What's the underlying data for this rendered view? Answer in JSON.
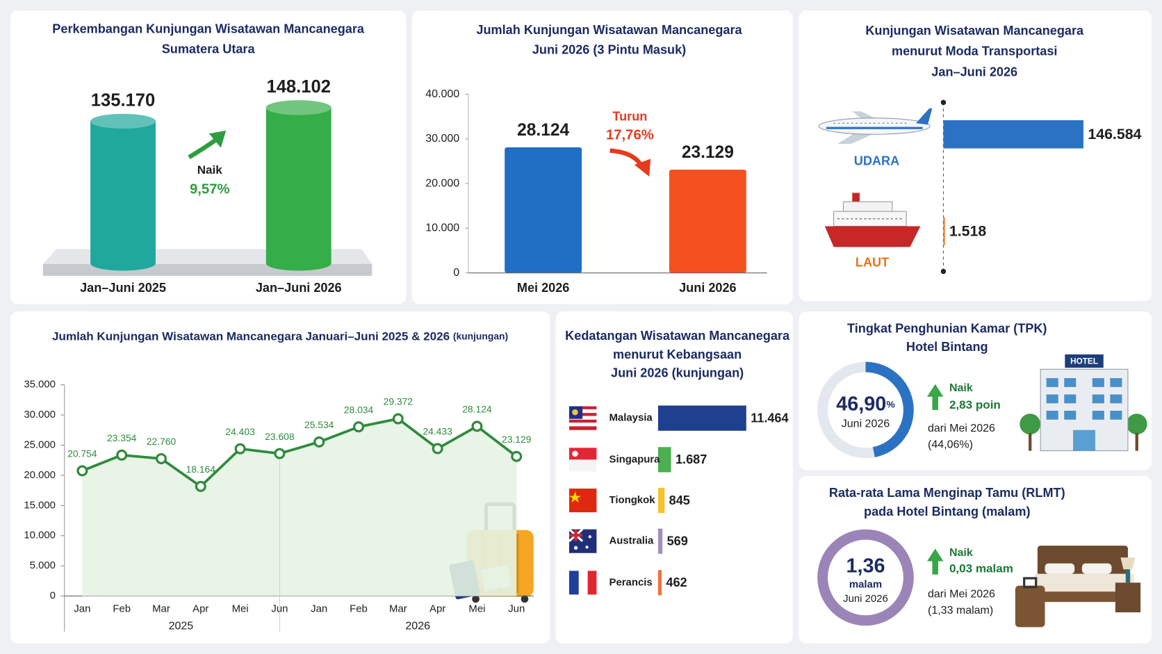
{
  "chart_data": [
    {
      "type": "cylinder",
      "title": [
        "Perkembangan Kunjungan Wisatawan Mancanegara",
        "Sumatera Utara"
      ],
      "categories": [
        "Jan–Juni 2025",
        "Jan–Juni 2026"
      ],
      "values": [
        135170,
        148102
      ],
      "value_labels": [
        "135.170",
        "148.102"
      ],
      "colors": [
        "#1fa89b",
        "#35ad48"
      ],
      "annotation": {
        "label": "Naik",
        "change": "9,57%"
      }
    },
    {
      "type": "bar",
      "title": [
        "Jumlah Kunjungan Wisatawan Mancanegara",
        "Juni 2026 (3 Pintu Masuk)"
      ],
      "categories": [
        "Mei 2026",
        "Juni 2026"
      ],
      "values": [
        28124,
        23129
      ],
      "value_labels": [
        "28.124",
        "23.129"
      ],
      "colors": [
        "#1f6fc4",
        "#f4511e"
      ],
      "ylim": [
        0,
        40000
      ],
      "yticks": [
        0,
        {
          "value": 10000,
          "label": "10.000"
        },
        {
          "value": 20000,
          "label": "20.000"
        },
        {
          "value": 30000,
          "label": "30.000"
        },
        {
          "value": 40000,
          "label": "40.000"
        }
      ],
      "annotation": {
        "label": "Turun",
        "change": "17,76%"
      }
    },
    {
      "type": "hbar",
      "title": [
        "Kunjungan Wisatawan Mancanegara",
        "menurut Moda Transportasi",
        "Jan–Juni 2026"
      ],
      "categories": [
        "UDARA",
        "LAUT"
      ],
      "values": [
        146584,
        1518
      ],
      "value_labels": [
        "146.584",
        "1.518"
      ],
      "colors": [
        "#2b73c2",
        "#e8731f"
      ]
    },
    {
      "type": "line",
      "title": "Jumlah Kunjungan Wisatawan Mancanegara Januari–Juni 2025 & 2026",
      "unit": "(kunjungan)",
      "categories": [
        "Jan",
        "Feb",
        "Mar",
        "Apr",
        "Mei",
        "Jun",
        "Jan",
        "Feb",
        "Mar",
        "Apr",
        "Mei",
        "Jun"
      ],
      "groups": [
        "2025",
        "2026"
      ],
      "values": [
        20754,
        23354,
        22760,
        18164,
        24403,
        23608,
        25534,
        28034,
        29372,
        24433,
        28124,
        23129
      ],
      "value_labels": [
        "20.754",
        "23.354",
        "22.760",
        "18.164",
        "24.403",
        "23.608",
        "25.534",
        "28.034",
        "29.372",
        "24.433",
        "28.124",
        "23.129"
      ],
      "color": "#2e8b3c",
      "ylim": [
        0,
        35000
      ],
      "yticks": [
        0,
        {
          "value": 5000,
          "label": "5.000"
        },
        {
          "value": 10000,
          "label": "10.000"
        },
        {
          "value": 15000,
          "label": "15.000"
        },
        {
          "value": 20000,
          "label": "20.000"
        },
        {
          "value": 25000,
          "label": "25.000"
        },
        {
          "value": 30000,
          "label": "30.000"
        },
        {
          "value": 35000,
          "label": "35.000"
        }
      ]
    },
    {
      "type": "hbar",
      "title": [
        "Kedatangan Wisatawan Mancanegara",
        "menurut Kebangsaan",
        "Juni 2026 (kunjungan)"
      ],
      "categories": [
        "Malaysia",
        "Singapura",
        "Tiongkok",
        "Australia",
        "Perancis"
      ],
      "values": [
        11464,
        1687,
        845,
        569,
        462
      ],
      "value_labels": [
        "11.464",
        "1.687",
        "845",
        "569",
        "462"
      ],
      "colors": [
        "#1f3f8f",
        "#4cb050",
        "#f6c32c",
        "#a28fc0",
        "#f07040"
      ]
    },
    {
      "type": "gauge",
      "title": [
        "Tingkat Penghunian Kamar (TPK)",
        "Hotel Bintang"
      ],
      "value": 46.9,
      "value_label": "46,90",
      "unit": "%",
      "ylim": [
        0,
        100
      ],
      "period": "Juni 2026",
      "color": "#2b73c2",
      "change": {
        "label": "Naik",
        "value": "2,83 poin",
        "note": "dari Mei 2026",
        "previous": "(44,06%)"
      }
    }
  ],
  "panels": {
    "rlmt": {
      "title": [
        "Rata-rata Lama Menginap Tamu (RLMT)",
        "pada Hotel Bintang (malam)"
      ],
      "value": "1,36",
      "unit": "malam",
      "period": "Juni 2026",
      "change": {
        "label": "Naik",
        "value": "0,03 malam",
        "note": "dari Mei 2026",
        "previous": "(1,33 malam)"
      }
    },
    "hotel_sign": "HOTEL"
  }
}
